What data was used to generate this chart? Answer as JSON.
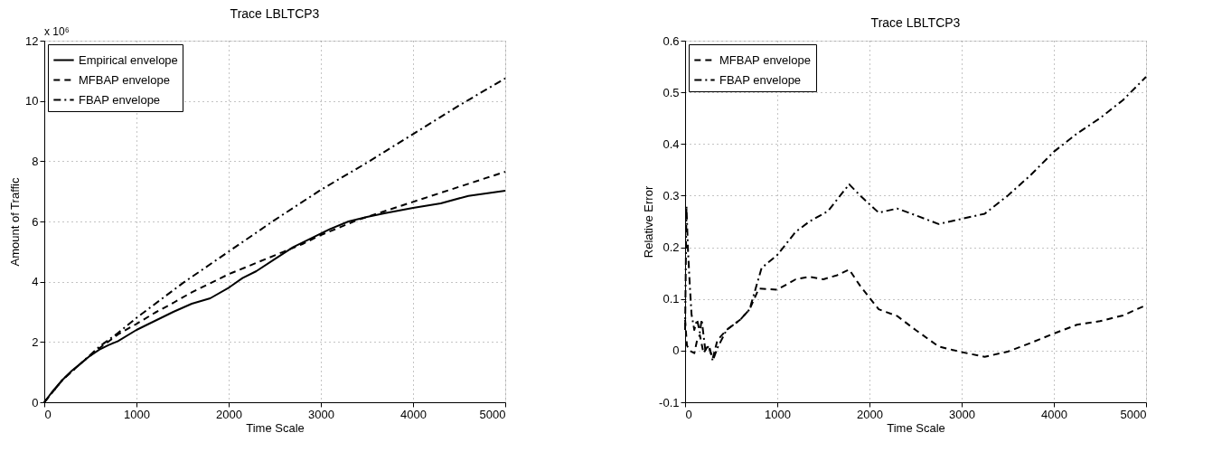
{
  "chart_data": [
    {
      "type": "line",
      "title": "Trace LBLTCP3",
      "xlabel": "Time Scale",
      "ylabel": "Amount of Traffic",
      "annotations": [
        "x 10⁶"
      ],
      "xlim": [
        0,
        5000
      ],
      "xticks": [
        0,
        1000,
        2000,
        3000,
        4000,
        5000
      ],
      "ylim": [
        0,
        12
      ],
      "yticks": [
        0,
        2,
        4,
        6,
        8,
        10,
        12
      ],
      "grid": true,
      "legend": "top left",
      "series": [
        {
          "name": "Empirical envelope",
          "color": "#000000",
          "line_style": "solid",
          "x": [
            0,
            100,
            200,
            300,
            400,
            500,
            600,
            700,
            800,
            1000,
            1200,
            1400,
            1600,
            1800,
            2000,
            2150,
            2300,
            2500,
            2700,
            2900,
            3100,
            3300,
            3500,
            3700,
            4000,
            4300,
            4600,
            5000
          ],
          "values": [
            0,
            0.4,
            0.75,
            1.05,
            1.3,
            1.55,
            1.75,
            1.9,
            2.03,
            2.4,
            2.7,
            3.0,
            3.27,
            3.45,
            3.8,
            4.12,
            4.35,
            4.75,
            5.15,
            5.45,
            5.75,
            6.0,
            6.15,
            6.28,
            6.45,
            6.6,
            6.85,
            7.02
          ]
        },
        {
          "name": "MFBAP envelope",
          "color": "#000000",
          "line_style": "dashed",
          "x": [
            0,
            200,
            400,
            600,
            800,
            1000,
            1200,
            1400,
            1600,
            1800,
            2000,
            2200,
            2400,
            2600,
            2800,
            3000,
            3200,
            3400,
            3600,
            3800,
            4000,
            4200,
            4400,
            4600,
            4800,
            5000
          ],
          "values": [
            0,
            0.75,
            1.3,
            1.8,
            2.25,
            2.6,
            2.97,
            3.3,
            3.65,
            3.95,
            4.25,
            4.5,
            4.75,
            5.0,
            5.25,
            5.55,
            5.8,
            6.05,
            6.25,
            6.45,
            6.65,
            6.85,
            7.05,
            7.25,
            7.45,
            7.65
          ]
        },
        {
          "name": "FBAP envelope",
          "color": "#000000",
          "line_style": "dashdot",
          "x": [
            0,
            200,
            400,
            600,
            800,
            1000,
            1500,
            2000,
            2500,
            3000,
            3500,
            4000,
            4500,
            5000
          ],
          "values": [
            0,
            0.75,
            1.3,
            1.85,
            2.3,
            2.8,
            3.95,
            5.0,
            6.05,
            7.05,
            7.95,
            8.9,
            9.85,
            10.75
          ]
        }
      ]
    },
    {
      "type": "line",
      "title": "Trace LBLTCP3",
      "xlabel": "Time Scale",
      "ylabel": "Relative Error",
      "xlim": [
        0,
        5000
      ],
      "xticks": [
        0,
        1000,
        2000,
        3000,
        4000,
        5000
      ],
      "ylim": [
        -0.1,
        0.6
      ],
      "yticks": [
        -0.1,
        0,
        0.1,
        0.2,
        0.3,
        0.4,
        0.5,
        0.6
      ],
      "grid": true,
      "legend": "top left",
      "series": [
        {
          "name": "MFBAP envelope",
          "color": "#000000",
          "line_style": "dashed",
          "x": [
            0,
            20,
            50,
            100,
            130,
            160,
            200,
            250,
            300,
            350,
            450,
            600,
            700,
            800,
            1000,
            1200,
            1350,
            1500,
            1650,
            1780,
            1900,
            2100,
            2300,
            2500,
            2750,
            3000,
            3250,
            3500,
            3750,
            4000,
            4250,
            4500,
            4750,
            5000
          ],
          "values": [
            0.06,
            0.01,
            0.0,
            -0.005,
            0.02,
            0.03,
            -0.005,
            0.01,
            -0.015,
            0.02,
            0.04,
            0.06,
            0.08,
            0.12,
            0.118,
            0.138,
            0.143,
            0.138,
            0.146,
            0.157,
            0.125,
            0.08,
            0.067,
            0.04,
            0.008,
            -0.003,
            -0.012,
            -0.002,
            0.015,
            0.033,
            0.05,
            0.057,
            0.068,
            0.088
          ]
        },
        {
          "name": "FBAP envelope",
          "color": "#000000",
          "line_style": "dashdot",
          "x": [
            0,
            15,
            30,
            50,
            70,
            100,
            130,
            160,
            180,
            220,
            260,
            300,
            350,
            450,
            600,
            700,
            830,
            1000,
            1200,
            1350,
            1550,
            1780,
            1900,
            2100,
            2300,
            2500,
            2750,
            3000,
            3250,
            3500,
            3750,
            4000,
            4250,
            4500,
            4750,
            5000
          ],
          "values": [
            0.04,
            0.28,
            0.2,
            0.13,
            0.07,
            0.04,
            0.06,
            0.035,
            0.06,
            0.0,
            0.01,
            -0.02,
            0.005,
            0.04,
            0.06,
            0.08,
            0.16,
            0.185,
            0.23,
            0.25,
            0.27,
            0.322,
            0.3,
            0.267,
            0.275,
            0.262,
            0.245,
            0.255,
            0.265,
            0.3,
            0.34,
            0.385,
            0.42,
            0.45,
            0.485,
            0.53
          ]
        }
      ]
    }
  ]
}
